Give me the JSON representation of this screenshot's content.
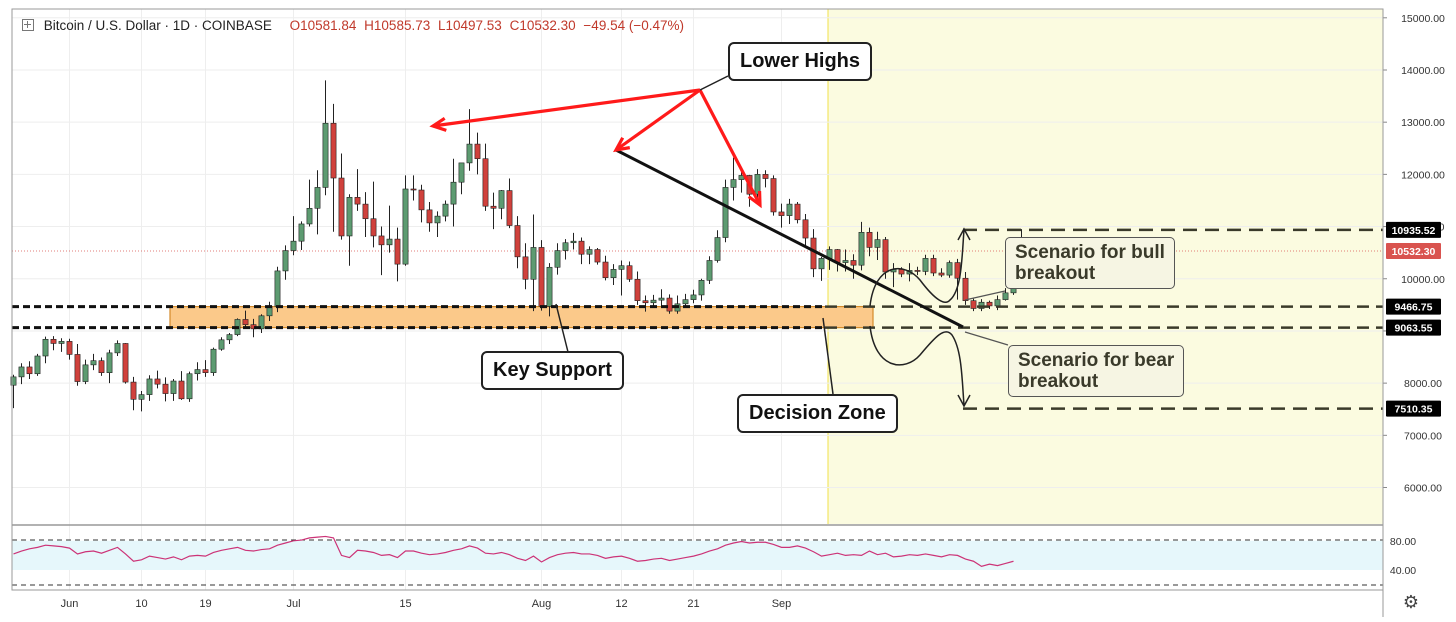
{
  "header": {
    "symbol": "Bitcoin / U.S. Dollar · 1D · COINBASE",
    "open": "O10581.84",
    "high": "H10585.73",
    "low": "L10497.53",
    "close": "C10532.30",
    "change": "−49.54 (−0.47%)"
  },
  "annotations": {
    "lower_highs": "Lower Highs",
    "key_support": "Key Support",
    "decision_zone": "Decision Zone",
    "bull_line1": "Scenario for bull",
    "bull_line2": "breakout",
    "bear_line1": "Scenario for bear",
    "bear_line2": "breakout"
  },
  "colors": {
    "up": "#5d9b71",
    "down": "#d0413c",
    "arrow": "#ff1a1a",
    "support_zone": "#fbc98a",
    "future_zone": "#fbfbe0",
    "rsi_line": "#cc3377",
    "rsi_band": "#e6f7fb",
    "price_label": "#d9534f"
  },
  "icons": {
    "settings": "gear-icon",
    "expand": "plus-square-icon"
  },
  "chart_data": [
    {
      "type": "candlestick",
      "title": "Bitcoin / U.S. Dollar · 1D · COINBASE",
      "ylim": [
        4900,
        15200
      ],
      "y_ticks": [
        6000,
        7000,
        8000,
        9000,
        10000,
        11000,
        12000,
        13000,
        14000,
        15000
      ],
      "y_tick_labels": [
        "6000.00",
        "7000.00",
        "8000.00",
        "",
        "10000.00",
        "11000.00",
        "12000.00",
        "13000.00",
        "14000.00",
        "15000.00"
      ],
      "x_labels": [
        "Jun",
        "10",
        "19",
        "Jul",
        "15",
        "Aug",
        "12",
        "21",
        "Sep"
      ],
      "x_label_index": [
        7,
        16,
        24,
        35,
        49,
        66,
        76,
        85,
        96
      ],
      "current_price": "10532.30",
      "price_labels": [
        "10935.52",
        "9466.75",
        "9063.55",
        "7510.35"
      ],
      "support_zone": [
        9063.55,
        9466.75
      ],
      "scenario_levels": {
        "bull_target": 10935.52,
        "bear_target": 7510.35
      },
      "candles": [
        [
          7960,
          8160,
          7520,
          8120
        ],
        [
          8120,
          8380,
          7980,
          8310
        ],
        [
          8310,
          8420,
          8080,
          8180
        ],
        [
          8180,
          8560,
          8140,
          8520
        ],
        [
          8520,
          8890,
          8380,
          8840
        ],
        [
          8840,
          8900,
          8630,
          8760
        ],
        [
          8760,
          8860,
          8600,
          8800
        ],
        [
          8800,
          8850,
          8450,
          8550
        ],
        [
          8550,
          8750,
          7950,
          8030
        ],
        [
          8030,
          8450,
          7980,
          8350
        ],
        [
          8350,
          8560,
          8250,
          8430
        ],
        [
          8430,
          8490,
          8140,
          8200
        ],
        [
          8200,
          8640,
          8000,
          8580
        ],
        [
          8580,
          8820,
          8520,
          8760
        ],
        [
          8760,
          8770,
          7990,
          8020
        ],
        [
          8020,
          8120,
          7480,
          7690
        ],
        [
          7690,
          7850,
          7460,
          7780
        ],
        [
          7780,
          8150,
          7660,
          8080
        ],
        [
          8080,
          8240,
          7900,
          7980
        ],
        [
          7980,
          8110,
          7650,
          7800
        ],
        [
          7800,
          8080,
          7660,
          8040
        ],
        [
          8040,
          8230,
          7680,
          7700
        ],
        [
          7700,
          8220,
          7640,
          8180
        ],
        [
          8180,
          8400,
          8050,
          8260
        ],
        [
          8260,
          8440,
          8120,
          8200
        ],
        [
          8200,
          8680,
          8140,
          8650
        ],
        [
          8650,
          8880,
          8620,
          8830
        ],
        [
          8830,
          8960,
          8750,
          8930
        ],
        [
          8930,
          9240,
          8900,
          9220
        ],
        [
          9220,
          9390,
          9080,
          9120
        ],
        [
          9120,
          9230,
          8880,
          9040
        ],
        [
          9040,
          9320,
          8960,
          9290
        ],
        [
          9290,
          9560,
          9190,
          9470
        ],
        [
          9470,
          10230,
          9360,
          10150
        ],
        [
          10150,
          10640,
          9980,
          10540
        ],
        [
          10540,
          11200,
          10450,
          10720
        ],
        [
          10720,
          11100,
          10550,
          11050
        ],
        [
          11050,
          11900,
          11000,
          11350
        ],
        [
          11350,
          12080,
          10850,
          11750
        ],
        [
          11750,
          13800,
          11600,
          12980
        ],
        [
          12980,
          13350,
          10900,
          11930
        ],
        [
          11930,
          12400,
          10750,
          10820
        ],
        [
          10820,
          11620,
          10250,
          11560
        ],
        [
          11560,
          12100,
          11300,
          11430
        ],
        [
          11430,
          11660,
          10800,
          11150
        ],
        [
          11150,
          11860,
          10600,
          10820
        ],
        [
          10820,
          11000,
          10070,
          10650
        ],
        [
          10650,
          11400,
          10500,
          10760
        ],
        [
          10760,
          10980,
          9950,
          10280
        ],
        [
          10280,
          11980,
          10250,
          11720
        ],
        [
          11720,
          11980,
          11500,
          11700
        ],
        [
          11700,
          11800,
          11080,
          11320
        ],
        [
          11320,
          11470,
          10900,
          11070
        ],
        [
          11070,
          11290,
          10800,
          11200
        ],
        [
          11200,
          11500,
          11100,
          11430
        ],
        [
          11430,
          12300,
          11000,
          11850
        ],
        [
          11850,
          12150,
          11620,
          12220
        ],
        [
          12220,
          13250,
          12070,
          12580
        ],
        [
          12580,
          12800,
          12000,
          12300
        ],
        [
          12300,
          12590,
          11300,
          11390
        ],
        [
          11390,
          11650,
          10950,
          11350
        ],
        [
          11350,
          11700,
          11140,
          11690
        ],
        [
          11690,
          11920,
          10970,
          11020
        ],
        [
          11020,
          11200,
          10200,
          10420
        ],
        [
          10420,
          10680,
          9800,
          9990
        ],
        [
          9990,
          11230,
          9380,
          10600
        ],
        [
          10600,
          10740,
          9390,
          9470
        ],
        [
          9470,
          10300,
          9280,
          10220
        ],
        [
          10220,
          10680,
          10080,
          10540
        ],
        [
          10540,
          10760,
          10370,
          10690
        ],
        [
          10690,
          10880,
          10560,
          10720
        ],
        [
          10720,
          10790,
          10280,
          10470
        ],
        [
          10470,
          10620,
          10280,
          10560
        ],
        [
          10560,
          10590,
          10270,
          10320
        ],
        [
          10320,
          10440,
          9970,
          10020
        ],
        [
          10020,
          10280,
          9880,
          10180
        ],
        [
          10180,
          10350,
          9680,
          10250
        ],
        [
          10250,
          10330,
          9940,
          9990
        ],
        [
          9990,
          10140,
          9500,
          9580
        ],
        [
          9580,
          9680,
          9370,
          9540
        ],
        [
          9540,
          9690,
          9480,
          9590
        ],
        [
          9590,
          9800,
          9480,
          9630
        ],
        [
          9630,
          9700,
          9330,
          9380
        ],
        [
          9380,
          9680,
          9330,
          9520
        ],
        [
          9520,
          9710,
          9450,
          9600
        ],
        [
          9600,
          9790,
          9530,
          9690
        ],
        [
          9690,
          10000,
          9580,
          9970
        ],
        [
          9970,
          10430,
          9900,
          10350
        ],
        [
          10350,
          10930,
          10310,
          10790
        ],
        [
          10790,
          11900,
          10700,
          11750
        ],
        [
          11750,
          12320,
          11500,
          11900
        ],
        [
          11900,
          12080,
          11650,
          11980
        ],
        [
          11980,
          11990,
          11380,
          11620
        ],
        [
          11620,
          12100,
          11530,
          12000
        ],
        [
          12000,
          12080,
          11750,
          11920
        ],
        [
          11920,
          11980,
          11210,
          11280
        ],
        [
          11280,
          11440,
          10980,
          11210
        ],
        [
          11210,
          11530,
          11050,
          11430
        ],
        [
          11430,
          11470,
          11060,
          11130
        ],
        [
          11130,
          11240,
          10590,
          10780
        ],
        [
          10780,
          10950,
          10030,
          10190
        ],
        [
          10190,
          10420,
          9960,
          10390
        ],
        [
          10390,
          10620,
          10170,
          10560
        ],
        [
          10560,
          10570,
          10140,
          10310
        ],
        [
          10310,
          10560,
          10140,
          10350
        ],
        [
          10350,
          10470,
          10000,
          10260
        ],
        [
          10260,
          11090,
          10160,
          10890
        ],
        [
          10890,
          10980,
          10430,
          10600
        ],
        [
          10600,
          10900,
          10360,
          10750
        ],
        [
          10750,
          10800,
          10000,
          10130
        ],
        [
          10130,
          10300,
          9840,
          10180
        ],
        [
          10180,
          10220,
          10030,
          10090
        ],
        [
          10090,
          10300,
          9950,
          10160
        ],
        [
          10160,
          10230,
          10070,
          10140
        ],
        [
          10140,
          10460,
          10070,
          10390
        ],
        [
          10390,
          10460,
          10050,
          10110
        ],
        [
          10110,
          10200,
          10030,
          10070
        ],
        [
          10070,
          10350,
          10020,
          10310
        ],
        [
          10310,
          10380,
          9600,
          10010
        ],
        [
          10010,
          10130,
          9500,
          9580
        ],
        [
          9580,
          9620,
          9380,
          9430
        ],
        [
          9430,
          9610,
          9380,
          9550
        ],
        [
          9550,
          9580,
          9420,
          9480
        ],
        [
          9480,
          9680,
          9400,
          9600
        ],
        [
          9600,
          9820,
          9580,
          9730
        ],
        [
          9730,
          10400,
          9690,
          10350
        ],
        [
          10350,
          10950,
          10290,
          10650
        ],
        [
          10650,
          10800,
          10550,
          10560
        ],
        [
          10560,
          10590,
          10500,
          10532
        ]
      ]
    },
    {
      "type": "line",
      "title": "",
      "ylim": [
        20,
        95
      ],
      "y_ticks": [
        40,
        80
      ],
      "y_tick_labels": [
        "40.00",
        "80.00"
      ],
      "band": [
        30,
        70
      ],
      "series": [
        {
          "values": [
            62,
            66,
            69,
            71,
            74,
            73,
            72,
            70,
            62,
            65,
            66,
            63,
            67,
            71,
            62,
            52,
            54,
            59,
            57,
            55,
            58,
            54,
            59,
            60,
            59,
            64,
            67,
            69,
            71,
            67,
            66,
            68,
            69,
            74,
            77,
            80,
            81,
            84,
            85,
            86,
            84,
            60,
            57,
            67,
            66,
            64,
            60,
            61,
            57,
            66,
            66,
            63,
            61,
            62,
            64,
            67,
            69,
            73,
            70,
            63,
            62,
            64,
            61,
            56,
            53,
            59,
            51,
            57,
            61,
            63,
            64,
            62,
            62,
            60,
            56,
            58,
            59,
            56,
            52,
            53,
            55,
            56,
            53,
            55,
            57,
            59,
            62,
            66,
            69,
            74,
            77,
            79,
            77,
            78,
            78,
            75,
            71,
            71,
            73,
            70,
            65,
            59,
            61,
            63,
            60,
            61,
            60,
            66,
            61,
            63,
            58,
            59,
            61,
            60,
            62,
            60,
            58,
            61,
            60,
            55,
            52,
            45,
            48,
            46,
            49,
            52
          ]
        }
      ]
    }
  ]
}
